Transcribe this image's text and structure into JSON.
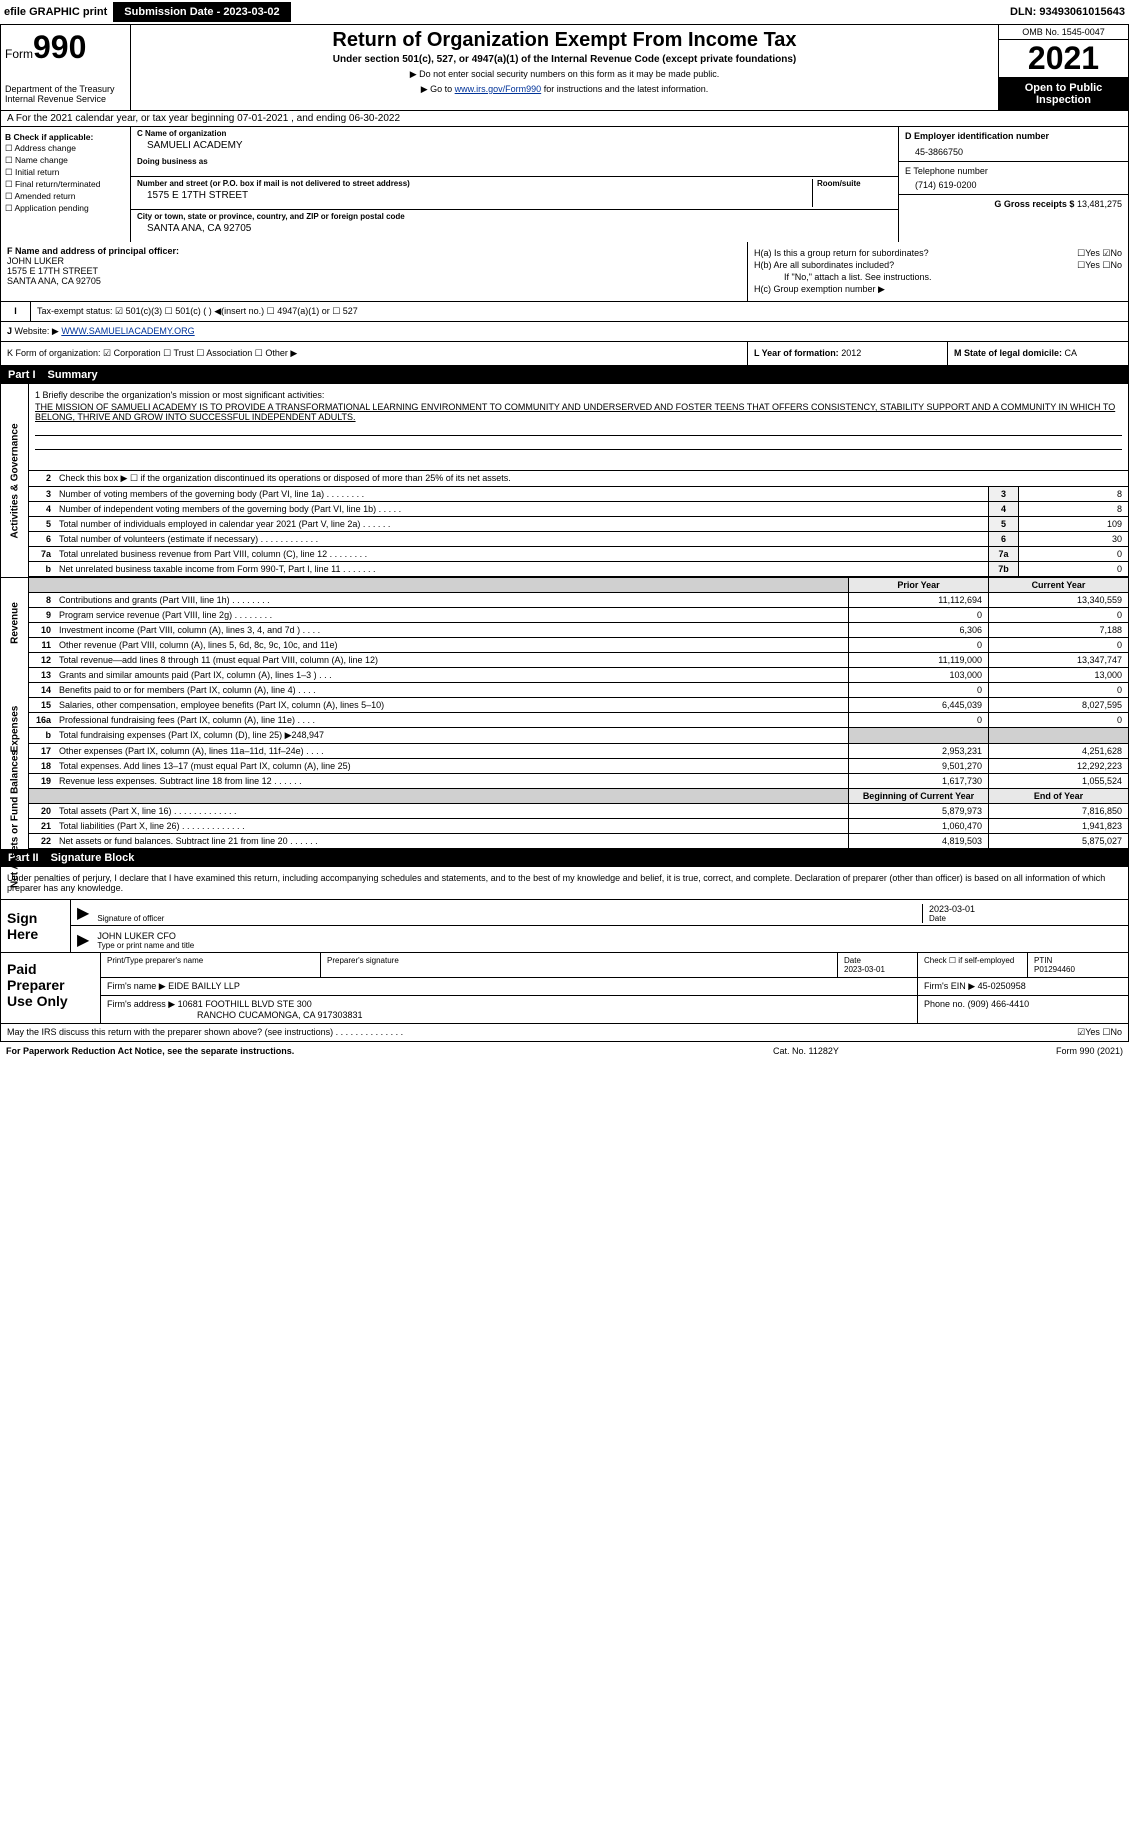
{
  "topbar": {
    "efile": "efile GRAPHIC print",
    "sub_btn": "Submission Date - 2023-03-02",
    "dln": "DLN: 93493061015643"
  },
  "header": {
    "form_word": "Form",
    "form_num": "990",
    "dept": "Department of the Treasury\nInternal Revenue Service",
    "title": "Return of Organization Exempt From Income Tax",
    "sub": "Under section 501(c), 527, or 4947(a)(1) of the Internal Revenue Code (except private foundations)",
    "arrow1": "▶ Do not enter social security numbers on this form as it may be made public.",
    "arrow2_pre": "▶ Go to ",
    "arrow2_link": "www.irs.gov/Form990",
    "arrow2_post": " for instructions and the latest information.",
    "omb": "OMB No. 1545-0047",
    "year": "2021",
    "open": "Open to Public Inspection"
  },
  "lineA": "A For the 2021 calendar year, or tax year beginning 07-01-2021     , and ending 06-30-2022",
  "B": {
    "hdr": "B Check if applicable:",
    "addr": "Address change",
    "name": "Name change",
    "init": "Initial return",
    "final": "Final return/terminated",
    "amend": "Amended return",
    "app": "Application pending"
  },
  "C": {
    "name_lbl": "C Name of organization",
    "name": "SAMUELI ACADEMY",
    "dba_lbl": "Doing business as",
    "dba": "",
    "addr_lbl": "Number and street (or P.O. box if mail is not delivered to street address)",
    "room_lbl": "Room/suite",
    "addr": "1575 E 17TH STREET",
    "city_lbl": "City or town, state or province, country, and ZIP or foreign postal code",
    "city": "SANTA ANA, CA  92705"
  },
  "D": {
    "lbl": "D Employer identification number",
    "val": "45-3866750"
  },
  "E": {
    "lbl": "E Telephone number",
    "val": "(714) 619-0200"
  },
  "G": {
    "lbl": "G Gross receipts $",
    "val": "13,481,275"
  },
  "F": {
    "lbl": "F  Name and address of principal officer:",
    "name": "JOHN LUKER",
    "addr1": "1575 E 17TH STREET",
    "addr2": "SANTA ANA, CA  92705"
  },
  "H": {
    "a": "H(a)  Is this a group return for subordinates?",
    "a_yn": "☐Yes ☑No",
    "b": "H(b)  Are all subordinates included?",
    "b_yn": "☐Yes ☐No",
    "b_note": "If \"No,\" attach a list. See instructions.",
    "c": "H(c)  Group exemption number ▶"
  },
  "I": {
    "lbl": "Tax-exempt status:",
    "opts": "☑ 501(c)(3)    ☐ 501(c) (  ) ◀(insert no.)    ☐ 4947(a)(1) or    ☐ 527"
  },
  "J": {
    "lbl": "J",
    "text_pre": "Website: ▶  ",
    "link": "WWW.SAMUELIACADEMY.ORG"
  },
  "K": {
    "lbl": "K Form of organization:  ☑ Corporation  ☐ Trust  ☐ Association  ☐ Other ▶"
  },
  "L": {
    "lbl": "L Year of formation:",
    "val": "2012"
  },
  "M": {
    "lbl": "M State of legal domicile:",
    "val": "CA"
  },
  "part1": {
    "num": "Part I",
    "title": "Summary"
  },
  "mission": {
    "lbl": "1  Briefly describe the organization's mission or most significant activities:",
    "txt": "THE MISSION OF SAMUELI ACADEMY IS TO PROVIDE A TRANSFORMATIONAL LEARNING ENVIRONMENT TO COMMUNITY AND UNDERSERVED AND FOSTER TEENS THAT OFFERS CONSISTENCY, STABILITY SUPPORT AND A COMMUNITY IN WHICH TO BELONG, THRIVE AND GROW INTO SUCCESSFUL INDEPENDENT ADULTS."
  },
  "gov": {
    "l2": "Check this box ▶ ☐  if the organization discontinued its operations or disposed of more than 25% of its net assets.",
    "rows": [
      {
        "n": "3",
        "d": "Number of voting members of the governing body (Part VI, line 1a)    .    .    .    .    .    .    .    .",
        "b": "3",
        "v": "8"
      },
      {
        "n": "4",
        "d": "Number of independent voting members of the governing body (Part VI, line 1b)    .    .    .    .    .",
        "b": "4",
        "v": "8"
      },
      {
        "n": "5",
        "d": "Total number of individuals employed in calendar year 2021 (Part V, line 2a)    .    .    .    .    .    .",
        "b": "5",
        "v": "109"
      },
      {
        "n": "6",
        "d": "Total number of volunteers (estimate if necessary)    .    .    .    .    .    .    .    .    .    .    .    .",
        "b": "6",
        "v": "30"
      },
      {
        "n": "7a",
        "d": "Total unrelated business revenue from Part VIII, column (C), line 12    .    .    .    .    .    .    .    .",
        "b": "7a",
        "v": "0"
      },
      {
        "n": "b",
        "d": "Net unrelated business taxable income from Form 990-T, Part I, line 11    .    .    .    .    .    .    .",
        "b": "7b",
        "v": "0"
      }
    ]
  },
  "prior_hdr": "Prior Year",
  "curr_hdr": "Current Year",
  "revenue": [
    {
      "n": "8",
      "d": "Contributions and grants (Part VIII, line 1h)    .    .    .    .    .    .    .    .",
      "c1": "11,112,694",
      "c2": "13,340,559"
    },
    {
      "n": "9",
      "d": "Program service revenue (Part VIII, line 2g)    .    .    .    .    .    .    .    .",
      "c1": "0",
      "c2": "0"
    },
    {
      "n": "10",
      "d": "Investment income (Part VIII, column (A), lines 3, 4, and 7d )    .    .    .    .",
      "c1": "6,306",
      "c2": "7,188"
    },
    {
      "n": "11",
      "d": "Other revenue (Part VIII, column (A), lines 5, 6d, 8c, 9c, 10c, and 11e)",
      "c1": "0",
      "c2": "0"
    },
    {
      "n": "12",
      "d": "Total revenue—add lines 8 through 11 (must equal Part VIII, column (A), line 12)",
      "c1": "11,119,000",
      "c2": "13,347,747"
    }
  ],
  "expenses": [
    {
      "n": "13",
      "d": "Grants and similar amounts paid (Part IX, column (A), lines 1–3 )    .    .    .",
      "c1": "103,000",
      "c2": "13,000"
    },
    {
      "n": "14",
      "d": "Benefits paid to or for members (Part IX, column (A), line 4)    .    .    .    .",
      "c1": "0",
      "c2": "0"
    },
    {
      "n": "15",
      "d": "Salaries, other compensation, employee benefits (Part IX, column (A), lines 5–10)",
      "c1": "6,445,039",
      "c2": "8,027,595"
    },
    {
      "n": "16a",
      "d": "Professional fundraising fees (Part IX, column (A), line 11e)    .    .    .    .",
      "c1": "0",
      "c2": "0"
    },
    {
      "n": "b",
      "d": "Total fundraising expenses (Part IX, column (D), line 25) ▶248,947",
      "c1": "shade",
      "c2": "shade"
    },
    {
      "n": "17",
      "d": "Other expenses (Part IX, column (A), lines 11a–11d, 11f–24e)    .    .    .    .",
      "c1": "2,953,231",
      "c2": "4,251,628"
    },
    {
      "n": "18",
      "d": "Total expenses. Add lines 13–17 (must equal Part IX, column (A), line 25)",
      "c1": "9,501,270",
      "c2": "12,292,223"
    },
    {
      "n": "19",
      "d": "Revenue less expenses. Subtract line 18 from line 12    .    .    .    .    .    .",
      "c1": "1,617,730",
      "c2": "1,055,524"
    }
  ],
  "net_hdr1": "Beginning of Current Year",
  "net_hdr2": "End of Year",
  "netassets": [
    {
      "n": "20",
      "d": "Total assets (Part X, line 16)    .    .    .    .    .    .    .    .    .    .    .    .    .",
      "c1": "5,879,973",
      "c2": "7,816,850"
    },
    {
      "n": "21",
      "d": "Total liabilities (Part X, line 26)    .    .    .    .    .    .    .    .    .    .    .    .    .",
      "c1": "1,060,470",
      "c2": "1,941,823"
    },
    {
      "n": "22",
      "d": "Net assets or fund balances. Subtract line 21 from line 20    .    .    .    .    .    .",
      "c1": "4,819,503",
      "c2": "5,875,027"
    }
  ],
  "part2": {
    "num": "Part II",
    "title": "Signature Block"
  },
  "sig_intro": "Under penalties of perjury, I declare that I have examined this return, including accompanying schedules and statements, and to the best of my knowledge and belief, it is true, correct, and complete. Declaration of preparer (other than officer) is based on all information of which preparer has any knowledge.",
  "sign": {
    "l": "Sign Here",
    "sig_lbl": "Signature of officer",
    "date_lbl": "Date",
    "date": "2023-03-01",
    "name": "JOHN LUKER  CFO",
    "name_lbl": "Type or print name and title"
  },
  "paid": {
    "l": "Paid Preparer Use Only",
    "h_name": "Print/Type preparer's name",
    "h_sig": "Preparer's signature",
    "h_date": "Date",
    "h_chk": "Check ☐ if self-employed",
    "h_ptin": "PTIN",
    "date": "2023-03-01",
    "ptin": "P01294460",
    "firm_lbl": "Firm's name    ▶",
    "firm": "EIDE BAILLY LLP",
    "ein_lbl": "Firm's EIN ▶",
    "ein": "45-0250958",
    "addr_lbl": "Firm's address ▶",
    "addr1": "10681 FOOTHILL BLVD STE 300",
    "addr2": "RANCHO CUCAMONGA, CA  917303831",
    "phone_lbl": "Phone no.",
    "phone": "(909) 466-4410"
  },
  "discuss": {
    "q": "May the IRS discuss this return with the preparer shown above? (see instructions)    .    .    .    .    .    .    .    .    .    .    .    .    .    .",
    "yn": "☑Yes  ☐No"
  },
  "footer": {
    "l": "For Paperwork Reduction Act Notice, see the separate instructions.",
    "m": "Cat. No. 11282Y",
    "r": "Form 990 (2021)"
  }
}
